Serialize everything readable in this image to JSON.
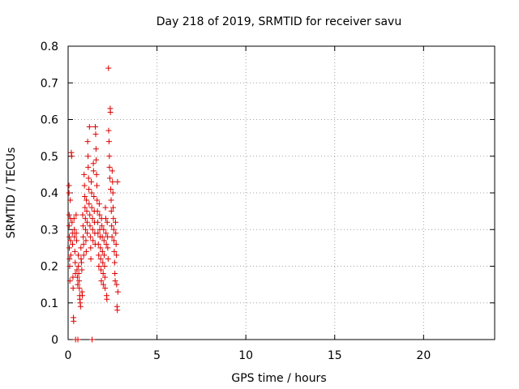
{
  "chart_data": {
    "type": "scatter",
    "title": "Day 218 of 2019, SRMTID for receiver savu",
    "xlabel": "GPS time / hours",
    "ylabel": "SRMTID / TECUs",
    "xlim": [
      0,
      24
    ],
    "ylim": [
      0,
      0.8
    ],
    "xticks": [
      0,
      5,
      10,
      15,
      20
    ],
    "xtick_labels": [
      "0",
      "5",
      "10",
      "15",
      "20"
    ],
    "yticks": [
      0,
      0.1,
      0.2,
      0.3,
      0.4,
      0.5,
      0.6,
      0.7,
      0.8
    ],
    "ytick_labels": [
      "0",
      "0.1",
      "0.2",
      "0.3",
      "0.4",
      "0.5",
      "0.6",
      "0.7",
      "0.8"
    ],
    "grid": true,
    "marker": "+",
    "color": "#dd0000",
    "series": [
      {
        "name": "SRMTID",
        "points": [
          [
            0.05,
            0.42
          ],
          [
            0.05,
            0.4
          ],
          [
            0.06,
            0.34
          ],
          [
            0.06,
            0.31
          ],
          [
            0.07,
            0.28
          ],
          [
            0.07,
            0.25
          ],
          [
            0.08,
            0.22
          ],
          [
            0.09,
            0.2
          ],
          [
            0.1,
            0.16
          ],
          [
            0.12,
            0.38
          ],
          [
            0.13,
            0.33
          ],
          [
            0.14,
            0.27
          ],
          [
            0.15,
            0.23
          ],
          [
            0.18,
            0.51
          ],
          [
            0.2,
            0.5
          ],
          [
            0.22,
            0.32
          ],
          [
            0.24,
            0.29
          ],
          [
            0.25,
            0.26
          ],
          [
            0.27,
            0.17
          ],
          [
            0.28,
            0.14
          ],
          [
            0.3,
            0.06
          ],
          [
            0.31,
            0.05
          ],
          [
            0.33,
            0.33
          ],
          [
            0.35,
            0.3
          ],
          [
            0.36,
            0.28
          ],
          [
            0.38,
            0.24
          ],
          [
            0.4,
            0.21
          ],
          [
            0.41,
            0.18
          ],
          [
            0.42,
            0.0
          ],
          [
            0.45,
            0.34
          ],
          [
            0.46,
            0.29
          ],
          [
            0.48,
            0.27
          ],
          [
            0.5,
            0.19
          ],
          [
            0.52,
            0.17
          ],
          [
            0.54,
            0.15
          ],
          [
            0.55,
            0.0
          ],
          [
            0.57,
            0.23
          ],
          [
            0.58,
            0.2
          ],
          [
            0.6,
            0.18
          ],
          [
            0.62,
            0.16
          ],
          [
            0.63,
            0.14
          ],
          [
            0.65,
            0.12
          ],
          [
            0.66,
            0.11
          ],
          [
            0.68,
            0.1
          ],
          [
            0.7,
            0.09
          ],
          [
            0.72,
            0.25
          ],
          [
            0.73,
            0.22
          ],
          [
            0.75,
            0.21
          ],
          [
            0.77,
            0.19
          ],
          [
            0.78,
            0.13
          ],
          [
            0.8,
            0.12
          ],
          [
            0.82,
            0.34
          ],
          [
            0.84,
            0.31
          ],
          [
            0.85,
            0.28
          ],
          [
            0.87,
            0.26
          ],
          [
            0.88,
            0.23
          ],
          [
            0.9,
            0.45
          ],
          [
            0.92,
            0.42
          ],
          [
            0.94,
            0.39
          ],
          [
            0.95,
            0.36
          ],
          [
            0.97,
            0.33
          ],
          [
            0.98,
            0.3
          ],
          [
            1.0,
            0.27
          ],
          [
            1.02,
            0.24
          ],
          [
            1.03,
            0.38
          ],
          [
            1.05,
            0.35
          ],
          [
            1.07,
            0.32
          ],
          [
            1.08,
            0.29
          ],
          [
            1.1,
            0.54
          ],
          [
            1.12,
            0.5
          ],
          [
            1.13,
            0.47
          ],
          [
            1.15,
            0.44
          ],
          [
            1.17,
            0.41
          ],
          [
            1.18,
            0.37
          ],
          [
            1.2,
            0.58
          ],
          [
            1.22,
            0.34
          ],
          [
            1.23,
            0.31
          ],
          [
            1.25,
            0.28
          ],
          [
            1.27,
            0.25
          ],
          [
            1.28,
            0.22
          ],
          [
            1.3,
            0.43
          ],
          [
            1.32,
            0.4
          ],
          [
            1.33,
            0.36
          ],
          [
            1.35,
            0.0
          ],
          [
            1.37,
            0.33
          ],
          [
            1.38,
            0.3
          ],
          [
            1.4,
            0.27
          ],
          [
            1.42,
            0.48
          ],
          [
            1.43,
            0.46
          ],
          [
            1.45,
            0.39
          ],
          [
            1.47,
            0.35
          ],
          [
            1.48,
            0.32
          ],
          [
            1.5,
            0.29
          ],
          [
            1.52,
            0.26
          ],
          [
            1.53,
            0.58
          ],
          [
            1.55,
            0.56
          ],
          [
            1.57,
            0.52
          ],
          [
            1.58,
            0.49
          ],
          [
            1.6,
            0.45
          ],
          [
            1.62,
            0.42
          ],
          [
            1.63,
            0.38
          ],
          [
            1.65,
            0.35
          ],
          [
            1.67,
            0.32
          ],
          [
            1.68,
            0.29
          ],
          [
            1.7,
            0.26
          ],
          [
            1.72,
            0.23
          ],
          [
            1.73,
            0.2
          ],
          [
            1.75,
            0.37
          ],
          [
            1.77,
            0.34
          ],
          [
            1.78,
            0.3
          ],
          [
            1.8,
            0.28
          ],
          [
            1.82,
            0.25
          ],
          [
            1.83,
            0.22
          ],
          [
            1.85,
            0.19
          ],
          [
            1.87,
            0.16
          ],
          [
            1.88,
            0.33
          ],
          [
            1.9,
            0.31
          ],
          [
            1.92,
            0.28
          ],
          [
            1.93,
            0.24
          ],
          [
            1.95,
            0.21
          ],
          [
            1.97,
            0.18
          ],
          [
            1.98,
            0.15
          ],
          [
            2.0,
            0.3
          ],
          [
            2.02,
            0.27
          ],
          [
            2.03,
            0.23
          ],
          [
            2.05,
            0.2
          ],
          [
            2.07,
            0.17
          ],
          [
            2.08,
            0.14
          ],
          [
            2.1,
            0.36
          ],
          [
            2.12,
            0.33
          ],
          [
            2.13,
            0.29
          ],
          [
            2.15,
            0.26
          ],
          [
            2.17,
            0.12
          ],
          [
            2.18,
            0.11
          ],
          [
            2.2,
            0.32
          ],
          [
            2.22,
            0.28
          ],
          [
            2.23,
            0.25
          ],
          [
            2.25,
            0.22
          ],
          [
            2.27,
            0.74
          ],
          [
            2.28,
            0.57
          ],
          [
            2.3,
            0.54
          ],
          [
            2.32,
            0.5
          ],
          [
            2.33,
            0.47
          ],
          [
            2.35,
            0.44
          ],
          [
            2.37,
            0.63
          ],
          [
            2.38,
            0.62
          ],
          [
            2.4,
            0.41
          ],
          [
            2.42,
            0.38
          ],
          [
            2.43,
            0.35
          ],
          [
            2.45,
            0.31
          ],
          [
            2.47,
            0.28
          ],
          [
            2.48,
            0.46
          ],
          [
            2.5,
            0.43
          ],
          [
            2.52,
            0.4
          ],
          [
            2.53,
            0.36
          ],
          [
            2.55,
            0.33
          ],
          [
            2.57,
            0.3
          ],
          [
            2.58,
            0.27
          ],
          [
            2.6,
            0.24
          ],
          [
            2.62,
            0.21
          ],
          [
            2.63,
            0.18
          ],
          [
            2.65,
            0.16
          ],
          [
            2.67,
            0.32
          ],
          [
            2.68,
            0.29
          ],
          [
            2.7,
            0.26
          ],
          [
            2.72,
            0.23
          ],
          [
            2.73,
            0.15
          ],
          [
            2.75,
            0.09
          ],
          [
            2.77,
            0.08
          ],
          [
            2.78,
            0.43
          ],
          [
            2.8,
            0.13
          ]
        ]
      }
    ]
  }
}
